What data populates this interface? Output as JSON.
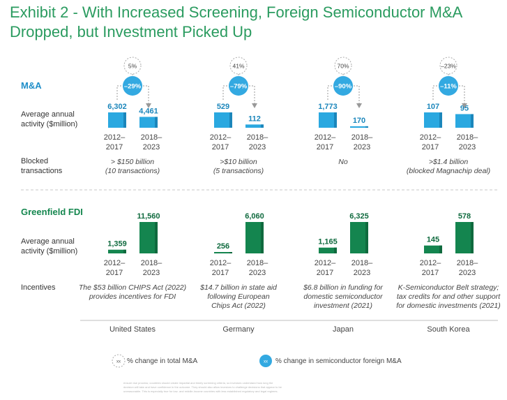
{
  "title": {
    "line1": "Exhibit 2 - With Increased Screening, Foreign Semiconductor M&A",
    "line2": "Dropped, but Investment Picked Up"
  },
  "sections": {
    "ma": "M&A",
    "fdi": "Greenfield FDI"
  },
  "row_labels": {
    "ma_activity": [
      "Average annual",
      "activity ($million)"
    ],
    "blocked": [
      "Blocked",
      "transactions"
    ],
    "fdi_activity": [
      "Average annual",
      "activity ($million)"
    ],
    "incentives": "Incentives"
  },
  "period_labels": [
    "2012–\n2017",
    "2018–\n2023"
  ],
  "countries": [
    {
      "name": "United States",
      "ma": {
        "v2012": "6,302",
        "v2018": "4,461",
        "total_change": "5%",
        "semi_change": "–29%"
      },
      "blocked": [
        "> $150 billion",
        "(10 transactions)"
      ],
      "fdi": {
        "v2012": "1,359",
        "v2018": "11,560"
      },
      "incentives": [
        "The $53 billion CHIPS Act (2022)",
        "provides incentives for FDI"
      ]
    },
    {
      "name": "Germany",
      "ma": {
        "v2012": "529",
        "v2018": "112",
        "total_change": "41%",
        "semi_change": "–79%"
      },
      "blocked": [
        ">$10 billion",
        "(5 transactions)"
      ],
      "fdi": {
        "v2012": "256",
        "v2018": "6,060"
      },
      "incentives": [
        "$14.7 billion in state aid",
        "following European",
        "Chips Act (2022)"
      ]
    },
    {
      "name": "Japan",
      "ma": {
        "v2012": "1,773",
        "v2018": "170",
        "total_change": "70%",
        "semi_change": "–90%"
      },
      "blocked": [
        "No"
      ],
      "fdi": {
        "v2012": "1,165",
        "v2018": "6,325"
      },
      "incentives": [
        "$6.8 billion in funding for",
        "domestic semiconductor",
        "investment (2021)"
      ]
    },
    {
      "name": "South Korea",
      "ma": {
        "v2012": "107",
        "v2018": "95",
        "total_change": "–23%",
        "semi_change": "–11%"
      },
      "blocked": [
        ">$1.4 billion",
        "(blocked Magnachip deal)"
      ],
      "fdi": {
        "v2012": "145",
        "v2018": "578"
      },
      "incentives": [
        "K-Semiconductor Belt strategy;",
        "tax credits for and other support",
        "for domestic investments (2021)"
      ]
    }
  ],
  "legend": {
    "marker": "xx",
    "total": "% change in total M&A",
    "semi": "% change in semiconductor foreign M&A"
  },
  "footnote": [
    "ensure due process; countries should create impartial and timely screening criteria, so investors understand how long the",
    "decision will take and have confidence in the outcome. They should also allow investors to challenge decisions that appear to be",
    "unreasonable. This is especially true for low- and middle-income countries with less established regulatory and legal regimes."
  ],
  "colors": {
    "title": "#2a9b5f",
    "ma_bar": "#2aa8e0",
    "ma_bar_dark": "#1b86bb",
    "fdi_bar": "#14854f",
    "fdi_bar_dark": "#0f6a3e",
    "semi_circle": "#33a9e1"
  },
  "chart_data": [
    {
      "type": "bar",
      "title": "M&A — Average annual activity ($million)",
      "categories": [
        "United States",
        "Germany",
        "Japan",
        "South Korea"
      ],
      "series": [
        {
          "name": "2012–2017",
          "values": [
            6302,
            529,
            1773,
            107
          ]
        },
        {
          "name": "2018–2023",
          "values": [
            4461,
            112,
            170,
            95
          ]
        }
      ],
      "total_ma_change_pct": [
        5,
        41,
        70,
        -23
      ],
      "semiconductor_foreign_ma_change_pct": [
        -29,
        -79,
        -90,
        -11
      ]
    },
    {
      "type": "bar",
      "title": "Greenfield FDI — Average annual activity ($million)",
      "categories": [
        "United States",
        "Germany",
        "Japan",
        "South Korea"
      ],
      "series": [
        {
          "name": "2012–2017",
          "values": [
            1359,
            256,
            1165,
            145
          ]
        },
        {
          "name": "2018–2023",
          "values": [
            11560,
            6060,
            6325,
            578
          ]
        }
      ]
    }
  ]
}
